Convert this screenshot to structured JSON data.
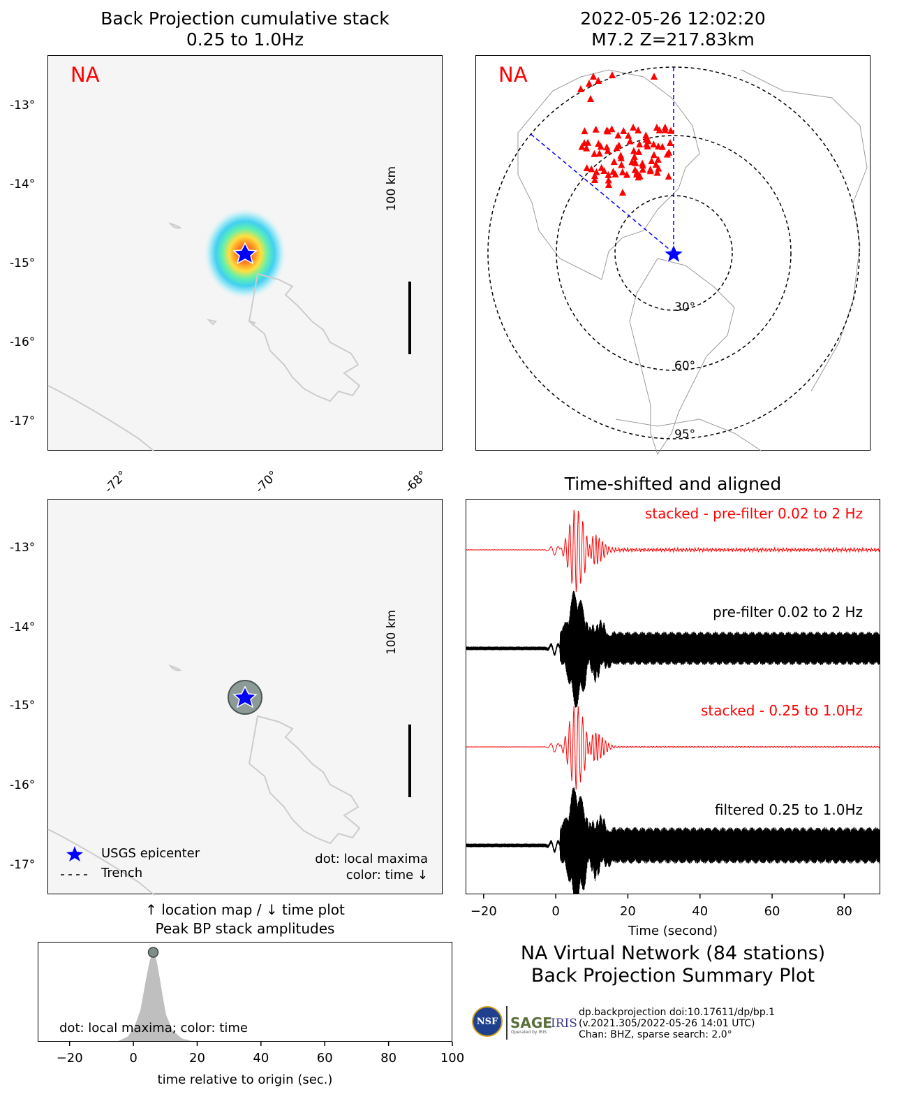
{
  "panel_bp": {
    "title_line1": "Back Projection cumulative stack",
    "title_line2": "0.25 to 1.0Hz",
    "network_label": "NA",
    "lat_ticks": [
      "-13°",
      "-14°",
      "-15°",
      "-16°",
      "-17°"
    ],
    "lon_ticks": [
      "-72°",
      "-70°",
      "-68°"
    ],
    "scale_label": "100 km"
  },
  "panel_globe": {
    "title_line1": "2022-05-26 12:02:20",
    "title_line2": "M7.2 Z=217.83km",
    "network_label": "NA",
    "ring_labels": [
      "30°",
      "60°",
      "95°"
    ]
  },
  "panel_location": {
    "lat_ticks": [
      "-13°",
      "-14°",
      "-15°",
      "-16°",
      "-17°"
    ],
    "scale_label": "100 km",
    "legend": {
      "epicenter": "USGS epicenter",
      "trench": "Trench"
    },
    "note_line1": "dot: local maxima",
    "note_line2": "color: time ↓",
    "caption_line1": "↑ location map / ↓ time plot",
    "caption_line2": "Peak BP stack amplitudes"
  },
  "panel_peak": {
    "note": "dot: local maxima; color: time"
  },
  "panel_traces": {
    "title": "Time-shifted and aligned",
    "label_stacked_pre": "stacked - pre-filter 0.02 to 2 Hz",
    "label_pre": "pre-filter 0.02 to 2 Hz",
    "label_stacked_bp": "stacked - 0.25 to 1.0Hz",
    "label_filtered": "filtered 0.25 to 1.0Hz"
  },
  "summary": {
    "line1": "NA Virtual Network (84 stations)",
    "line2": "Back Projection Summary Plot"
  },
  "credits": {
    "line1": "dp.backprojection doi:10.17611/dp/bp.1",
    "line2": "(v.2021.305/2022-05-26 14:01 UTC)",
    "line3": "Chan: BHZ, sparse search: 2.0°",
    "logo_nsf": "NSF",
    "logo_sage": "SAGE",
    "logo_sage_sub": "Operated by IRIS",
    "logo_iris": "IRIS"
  },
  "colors": {
    "stack_red": "#ff0000",
    "epicenter_blue": "#0000ff",
    "coast_gray": "#cccccc"
  },
  "chart_data": [
    {
      "type": "line",
      "name": "peak-bp-stack-amplitudes",
      "xlabel": "time relative to origin (sec.)",
      "xlim": [
        -30,
        100
      ],
      "x_ticks": [
        -20,
        0,
        20,
        40,
        60,
        80,
        100
      ],
      "peak_time": 6,
      "x": [
        -5,
        -2,
        0,
        2,
        3,
        4,
        5,
        6,
        7,
        8,
        9,
        10,
        12,
        15,
        18
      ],
      "values": [
        0,
        0.05,
        0.15,
        0.35,
        0.55,
        0.75,
        0.92,
        1.0,
        0.92,
        0.72,
        0.5,
        0.3,
        0.12,
        0.03,
        0
      ]
    },
    {
      "type": "line",
      "name": "time-shifted-traces",
      "xlabel": "Time (second)",
      "xlim": [
        -25,
        90
      ],
      "x_ticks": [
        -20,
        0,
        20,
        40,
        60,
        80
      ],
      "series": [
        {
          "name": "stacked - pre-filter 0.02 to 2 Hz"
        },
        {
          "name": "pre-filter 0.02 to 2 Hz"
        },
        {
          "name": "stacked - 0.25 to 1.0Hz"
        },
        {
          "name": "filtered 0.25 to 1.0Hz"
        }
      ]
    }
  ]
}
